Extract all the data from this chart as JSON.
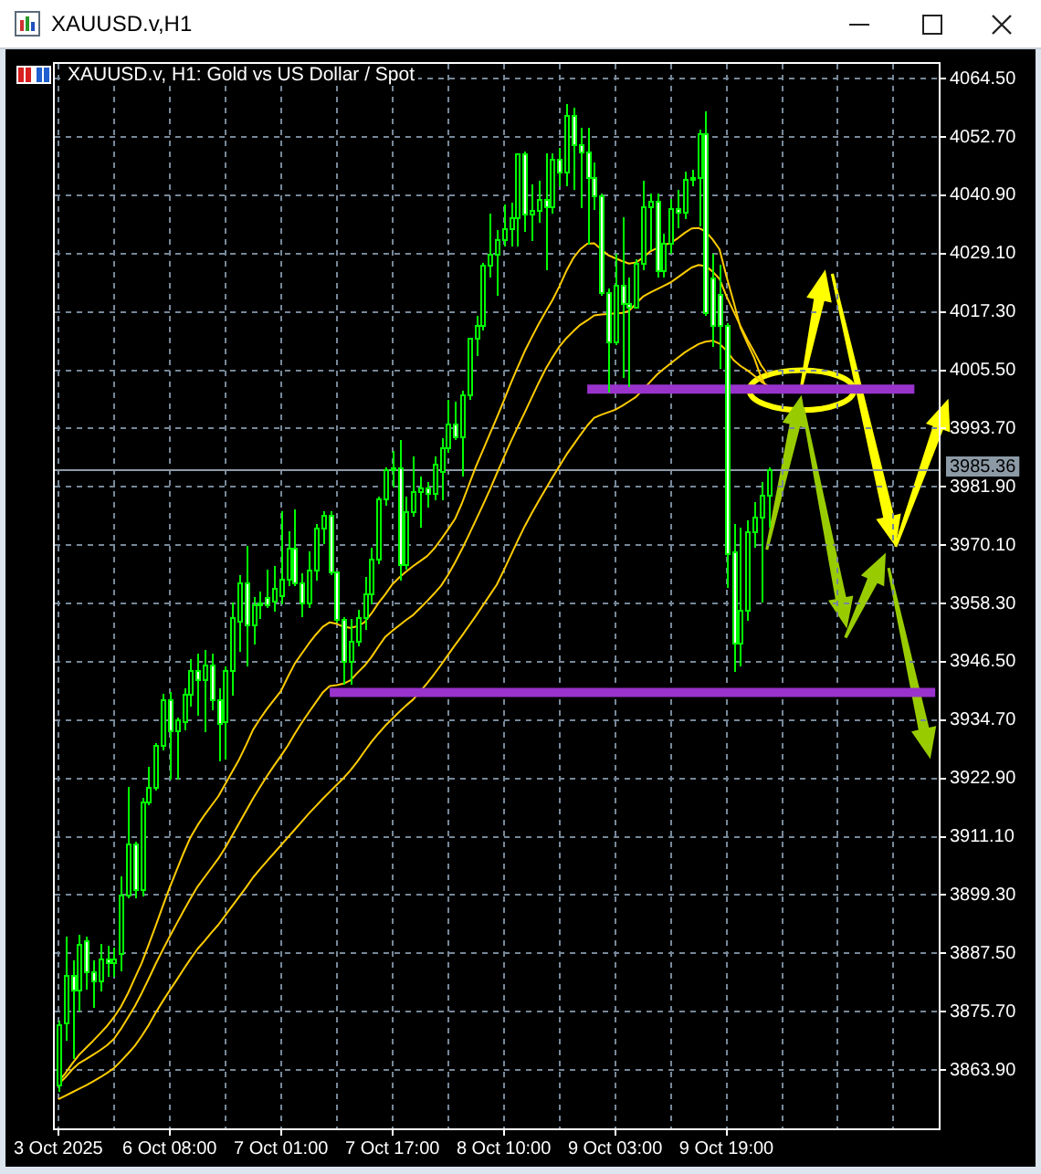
{
  "chart_data": {
    "type": "candlestick",
    "title": "XAUUSD.v,H1",
    "subtitle": "XAUUSD.v, H1: Gold vs US Dollar / Spot",
    "color": "#00ff00",
    "categories": [
      "3 Oct 2025",
      null,
      null,
      null,
      null,
      null,
      null,
      null,
      null,
      null,
      null,
      null,
      null,
      null,
      null,
      null,
      "6 Oct 08:00",
      null,
      null,
      null,
      null,
      null,
      null,
      null,
      null,
      null,
      null,
      null,
      null,
      null,
      null,
      null,
      "7 Oct 01:00",
      null,
      null,
      null,
      null,
      null,
      null,
      null,
      null,
      null,
      null,
      null,
      null,
      null,
      null,
      null,
      "7 Oct 17:00",
      null,
      null,
      null,
      null,
      null,
      null,
      null,
      null,
      null,
      null,
      null,
      null,
      null,
      null,
      null,
      "8 Oct 10:00",
      null,
      null,
      null,
      null,
      null,
      null,
      null,
      null,
      null,
      null,
      null,
      null,
      null,
      null,
      null,
      "9 Oct 03:00",
      null,
      null,
      null,
      null,
      null,
      null,
      null,
      null,
      null,
      null,
      null,
      null,
      null,
      null,
      null,
      "9 Oct 19:00",
      null,
      null,
      null,
      null,
      null,
      null,
      null,
      null,
      null,
      null,
      null,
      null,
      null,
      null,
      null,
      null,
      null,
      null,
      null,
      null,
      null,
      null,
      null,
      null,
      null,
      null,
      null,
      null,
      null,
      null
    ],
    "ohlc": [
      [
        3861.0,
        3874.0,
        3860.0,
        3873.0
      ],
      [
        3873.7,
        3891.0,
        3870.1,
        3883.3
      ],
      [
        3883.0,
        3886.0,
        3866.4,
        3880.0
      ],
      [
        3880.0,
        3891.2,
        3876.2,
        3889.5
      ],
      [
        3890.0,
        3891.0,
        3880.5,
        3884.0
      ],
      [
        3884.0,
        3886.0,
        3876.8,
        3882.0
      ],
      [
        3882.0,
        3889.5,
        3880.1,
        3886.3
      ],
      [
        3886.3,
        3889.1,
        3883.3,
        3885.8
      ],
      [
        3885.8,
        3888.5,
        3883.0,
        3886.5
      ],
      [
        3887.5,
        3903.0,
        3884.2,
        3899.5
      ],
      [
        3899.5,
        3921.1,
        3898.9,
        3909.9
      ],
      [
        3909.9,
        3910.0,
        3898.9,
        3900.4
      ],
      [
        3900.4,
        3919.0,
        3899.5,
        3918.2
      ],
      [
        3918.2,
        3925.1,
        3918.0,
        3921.1
      ],
      [
        3921.1,
        3929.9,
        3921.0,
        3929.7
      ],
      [
        3929.7,
        3940.0,
        3929.0,
        3938.9
      ],
      [
        3938.9,
        3940.5,
        3922.9,
        3932.7
      ],
      [
        3932.7,
        3935.2,
        3922.9,
        3934.7
      ],
      [
        3934.5,
        3941.0,
        3933.0,
        3940.1
      ],
      [
        3940.0,
        3947.0,
        3938.0,
        3945.0
      ],
      [
        3945.0,
        3948.0,
        3936.0,
        3943.0
      ],
      [
        3943.0,
        3949.0,
        3932.7,
        3946.0
      ],
      [
        3946.0,
        3948.0,
        3937.0,
        3939.0
      ],
      [
        3939.0,
        3941.0,
        3926.8,
        3934.2
      ],
      [
        3934.5,
        3945.5,
        3927.0,
        3944.9
      ],
      [
        3944.9,
        3958.4,
        3940.0,
        3955.4
      ],
      [
        3954.7,
        3964.0,
        3949.0,
        3962.5
      ],
      [
        3962.5,
        3970.1,
        3946.1,
        3954.1
      ],
      [
        3954.1,
        3959.7,
        3950.4,
        3958.1
      ],
      [
        3958.1,
        3960.9,
        3955.7,
        3958.5
      ],
      [
        3959.5,
        3965.2,
        3957.8,
        3958.2
      ],
      [
        3959.0,
        3965.8,
        3957.2,
        3961.5
      ],
      [
        3960.0,
        3976.9,
        3958.4,
        3963.3
      ],
      [
        3963.3,
        3972.9,
        3962.1,
        3969.5
      ],
      [
        3969.5,
        3977.5,
        3962.1,
        3962.7
      ],
      [
        3962.7,
        3964.6,
        3956.0,
        3958.4
      ],
      [
        3958.4,
        3968.9,
        3957.8,
        3965.2
      ],
      [
        3965.2,
        3974.4,
        3963.3,
        3973.5
      ],
      [
        3973.5,
        3976.9,
        3970.7,
        3976.2
      ],
      [
        3976.1,
        3976.9,
        3964.6,
        3964.8
      ],
      [
        3964.8,
        3964.8,
        3954.7,
        3955.0
      ],
      [
        3955.0,
        3955.4,
        3942.4,
        3946.5
      ],
      [
        3946.5,
        3955.0,
        3942.4,
        3950.9
      ],
      [
        3950.9,
        3957.2,
        3950.0,
        3955.4
      ],
      [
        3955.4,
        3963.6,
        3953.5,
        3960.3
      ],
      [
        3960.3,
        3969.5,
        3958.4,
        3967.3
      ],
      [
        3967.3,
        3979.9,
        3966.8,
        3979.6
      ],
      [
        3979.6,
        3986.0,
        3978.5,
        3985.5
      ],
      [
        3985.5,
        3989.0,
        3982.0,
        3985.7
      ],
      [
        3985.7,
        3991.4,
        3963.4,
        3966.1
      ],
      [
        3966.1,
        3980.0,
        3965.5,
        3976.9
      ],
      [
        3976.9,
        3987.9,
        3976.3,
        3981.2
      ],
      [
        3981.2,
        3984.0,
        3974.2,
        3981.9
      ],
      [
        3981.9,
        3983.0,
        3978.0,
        3980.5
      ],
      [
        3980.5,
        3987.9,
        3979.6,
        3986.5
      ],
      [
        3985.0,
        3991.6,
        3979.6,
        3989.8
      ],
      [
        3989.8,
        3999.6,
        3989.2,
        3994.7
      ],
      [
        3994.7,
        3999.0,
        3991.6,
        3992.2
      ],
      [
        3992.2,
        4001.4,
        3984.5,
        4000.8
      ],
      [
        4000.8,
        4012.2,
        4000.0,
        4011.9
      ],
      [
        4011.9,
        4016.4,
        4008.8,
        4014.7
      ],
      [
        4014.7,
        4027.2,
        4014.0,
        4026.9
      ],
      [
        4026.9,
        4037.3,
        4024.8,
        4029.1
      ],
      [
        4029.1,
        4034.0,
        4021.1,
        4031.9
      ],
      [
        4031.9,
        4039.2,
        4031.0,
        4034.4
      ],
      [
        4034.4,
        4039.5,
        4031.0,
        4036.5
      ],
      [
        4036.5,
        4049.5,
        4031.0,
        4049.4
      ],
      [
        4049.4,
        4049.6,
        4034.0,
        4037.1
      ],
      [
        4037.1,
        4043.2,
        4032.2,
        4038.0
      ],
      [
        4038.0,
        4043.9,
        4035.9,
        4040.2
      ],
      [
        4040.2,
        4049.4,
        4026.3,
        4038.5
      ],
      [
        4038.5,
        4049.4,
        4037.7,
        4048.4
      ],
      [
        4048.4,
        4050.4,
        4043.2,
        4045.7
      ],
      [
        4045.7,
        4059.5,
        4043.2,
        4057.0
      ],
      [
        4057.0,
        4058.5,
        4042.5,
        4051.1
      ],
      [
        4051.1,
        4054.5,
        4038.6,
        4049.6
      ],
      [
        4049.6,
        4054.5,
        4031.4,
        4044.7
      ],
      [
        4044.7,
        4047.4,
        4038.2,
        4041.0
      ],
      [
        4041.0,
        4041.3,
        4021.0,
        4021.4
      ],
      [
        4021.4,
        4022.2,
        4001.3,
        4011.5
      ],
      [
        4011.5,
        4029.0,
        4011.0,
        4022.8
      ],
      [
        4022.8,
        4036.4,
        4004.4,
        4019.1
      ],
      [
        4019.1,
        4024.1,
        4002.6,
        4018.5
      ],
      [
        4018.5,
        4028.0,
        4018.2,
        4027.1
      ],
      [
        4027.1,
        4043.7,
        4026.3,
        4038.8
      ],
      [
        4038.8,
        4041.3,
        4030.2,
        4039.7
      ],
      [
        4039.7,
        4041.3,
        4024.7,
        4025.7
      ],
      [
        4025.7,
        4033.3,
        4024.7,
        4031.4
      ],
      [
        4031.4,
        4040.0,
        4029.6,
        4038.2
      ],
      [
        4038.2,
        4041.9,
        4034.5,
        4037.4
      ],
      [
        4037.4,
        4045.6,
        4036.4,
        4044.3
      ],
      [
        4044.3,
        4046.0,
        4043.0,
        4044.7
      ],
      [
        4044.7,
        4054.2,
        4035.0,
        4053.6
      ],
      [
        4053.6,
        4057.9,
        4017.0,
        4017.3
      ],
      [
        4024.1,
        4029.0,
        4010.5,
        4014.5
      ],
      [
        4021.0,
        4027.0,
        4006.2,
        4014.5
      ],
      [
        4014.6,
        4015.0,
        3962.0,
        3968.5
      ],
      [
        3968.8,
        3974.3,
        3944.8,
        3950.3
      ],
      [
        3950.3,
        3973.7,
        3946.0,
        3957.1
      ],
      [
        3957.0,
        3975.0,
        3955.0,
        3973.0
      ],
      [
        3973.0,
        3979.0,
        3970.0,
        3976.0
      ],
      [
        3976.0,
        3983.0,
        3959.0,
        3980.4
      ],
      [
        3980.4,
        3986.0,
        3974.0,
        3985.4
      ],
      null,
      null,
      null,
      null,
      null,
      null,
      null,
      null,
      null,
      null,
      null,
      null,
      null,
      null,
      null,
      null,
      null,
      null,
      null,
      null,
      null,
      null,
      null,
      null
    ],
    "series": [
      {
        "type": "line",
        "color": "#ffcc00",
        "values": [
          3861.5,
          3863.2,
          3865.2,
          3867.0,
          3868.4,
          3869.8,
          3871.3,
          3872.8,
          3874.6,
          3876.7,
          3879.4,
          3882.5,
          3885.6,
          3889.3,
          3893.1,
          3897.0,
          3900.8,
          3904.3,
          3907.8,
          3911.0,
          3913.4,
          3915.5,
          3917.4,
          3919.3,
          3921.8,
          3924.3,
          3926.8,
          3929.7,
          3932.8,
          3935.0,
          3937.0,
          3938.8,
          3940.6,
          3943.5,
          3946.2,
          3948.2,
          3950.2,
          3952.0,
          3953.6,
          3954.5,
          3954.2,
          3953.6,
          3953.4,
          3953.7,
          3954.5,
          3956.3,
          3958.4,
          3960.2,
          3962.2,
          3963.6,
          3964.8,
          3965.9,
          3966.9,
          3967.9,
          3969.4,
          3971.3,
          3973.3,
          3975.4,
          3978.6,
          3982.3,
          3986.0,
          3989.3,
          3992.6,
          3995.9,
          3999.3,
          4002.8,
          4006.1,
          4009.3,
          4012.1,
          4014.8,
          4017.3,
          4019.7,
          4022.5,
          4025.6,
          4028.2,
          4030.0,
          4031.1,
          4031.2,
          4030.0,
          4028.8,
          4028.2,
          4027.6,
          4027.1,
          4027.3,
          4028.3,
          4029.5,
          4030.2,
          4030.8,
          4031.3,
          4032.2,
          4033.3,
          4034.2,
          4034.3,
          4033.6,
          4032.0,
          4030.0,
          4024.5,
          4019.5,
          4014.2,
          4011.0,
          4008.0,
          4004.0,
          4001.5,
          null,
          null,
          null,
          null,
          null,
          null,
          null,
          null,
          null,
          null,
          null,
          null,
          null,
          null,
          null,
          null,
          null,
          null,
          null,
          null,
          null,
          null,
          null,
          null
        ]
      },
      {
        "type": "line",
        "color": "#ffcc00",
        "values": [
          3861.0,
          3862.4,
          3864.0,
          3865.3,
          3866.1,
          3867.0,
          3867.9,
          3868.9,
          3870.2,
          3872.2,
          3874.5,
          3876.8,
          3879.5,
          3882.4,
          3885.4,
          3888.2,
          3890.9,
          3893.5,
          3896.1,
          3898.6,
          3901.0,
          3902.9,
          3904.8,
          3906.7,
          3908.9,
          3911.4,
          3913.9,
          3916.4,
          3918.9,
          3921.2,
          3923.4,
          3925.5,
          3927.5,
          3929.6,
          3932.0,
          3934.2,
          3936.3,
          3938.3,
          3940.3,
          3941.6,
          3941.8,
          3942.1,
          3942.8,
          3944.3,
          3945.7,
          3947.5,
          3949.6,
          3951.6,
          3952.8,
          3953.9,
          3955.0,
          3956.0,
          3957.4,
          3958.8,
          3960.3,
          3961.9,
          3964.1,
          3966.6,
          3969.3,
          3972.2,
          3975.2,
          3978.2,
          3981.3,
          3984.6,
          3987.8,
          3991.0,
          3994.0,
          3996.9,
          3999.9,
          4002.9,
          4005.7,
          4008.1,
          4010.3,
          4012.0,
          4013.4,
          4014.7,
          4015.6,
          4016.6,
          4016.8,
          4016.9,
          4017.0,
          4017.1,
          4017.5,
          4019.0,
          4020.4,
          4021.2,
          4021.9,
          4022.6,
          4023.3,
          4024.3,
          4025.3,
          4026.3,
          4026.8,
          4026.6,
          4025.5,
          4024.0,
          4020.5,
          4017.5,
          4014.5,
          4011.7,
          4009.2,
          4006.5,
          4004.5,
          null,
          null,
          null,
          null,
          null,
          null,
          null,
          null,
          null,
          null,
          null,
          null,
          null,
          null,
          null,
          null,
          null,
          null,
          null,
          null,
          null,
          null,
          null,
          null
        ]
      },
      {
        "type": "line",
        "color": "#ffcc00",
        "values": [
          3858.0,
          3858.7,
          3859.4,
          3860.1,
          3860.8,
          3861.6,
          3862.4,
          3863.3,
          3864.3,
          3865.7,
          3867.2,
          3868.8,
          3870.8,
          3873.0,
          3875.5,
          3877.8,
          3880.0,
          3882.1,
          3884.3,
          3886.4,
          3888.4,
          3890.0,
          3891.7,
          3893.3,
          3895.2,
          3897.1,
          3899.0,
          3900.9,
          3902.9,
          3904.6,
          3906.2,
          3907.8,
          3909.4,
          3911.0,
          3912.6,
          3914.2,
          3915.8,
          3917.3,
          3918.8,
          3920.2,
          3921.6,
          3923.0,
          3924.6,
          3926.4,
          3928.4,
          3930.3,
          3932.0,
          3933.6,
          3935.0,
          3936.4,
          3937.7,
          3938.9,
          3940.5,
          3942.2,
          3944.0,
          3945.9,
          3947.9,
          3949.9,
          3951.8,
          3953.8,
          3955.8,
          3957.9,
          3960.0,
          3962.1,
          3965.0,
          3968.0,
          3971.0,
          3973.9,
          3976.5,
          3979.0,
          3981.4,
          3983.8,
          3986.1,
          3988.4,
          3990.4,
          3992.4,
          3994.3,
          3995.9,
          3996.5,
          3997.0,
          3997.5,
          3998.3,
          3999.2,
          4000.1,
          4001.6,
          4003.1,
          4004.6,
          4005.8,
          4006.9,
          4008.0,
          4009.1,
          4010.0,
          4010.8,
          4011.3,
          4011.5,
          4010.9,
          4009.5,
          4007.6,
          4006.4,
          4005.5,
          4004.4,
          4003.2,
          4002.3,
          null,
          null,
          null,
          null,
          null,
          null,
          null,
          null,
          null,
          null,
          null,
          null,
          null,
          null,
          null,
          null,
          null,
          null,
          null,
          null,
          null,
          null,
          null,
          null
        ]
      },
      {
        "type": "step",
        "color": "#9933cc",
        "values": [
          null,
          null,
          null,
          null,
          null,
          null,
          null,
          null,
          null,
          null,
          null,
          null,
          null,
          null,
          null,
          null,
          null,
          null,
          null,
          null,
          null,
          null,
          null,
          null,
          null,
          null,
          null,
          null,
          null,
          null,
          null,
          null,
          null,
          null,
          null,
          null,
          null,
          null,
          null,
          null,
          null,
          null,
          null,
          null,
          null,
          null,
          null,
          null,
          null,
          null,
          null,
          null,
          null,
          null,
          null,
          null,
          null,
          null,
          null,
          null,
          null,
          null,
          null,
          null,
          null,
          null,
          null,
          null,
          null,
          null,
          null,
          null,
          null,
          null,
          null,
          null,
          4001.7,
          4001.7,
          4001.7,
          4001.7,
          4001.7,
          4001.7,
          4001.7,
          4001.7,
          4001.7,
          4001.7,
          4001.7,
          4001.7,
          4001.7,
          4001.7,
          4001.7,
          4001.7,
          4001.7,
          4001.7,
          4001.7,
          4001.7,
          4001.7,
          4001.7,
          4001.7,
          4001.7,
          4001.7,
          4001.7,
          4001.7,
          4001.7,
          4001.7,
          4001.7,
          4001.7,
          4001.7,
          4001.7,
          4001.7,
          4001.7,
          4001.7,
          4001.7,
          4001.7,
          4001.7,
          4001.7,
          4001.7,
          4001.7,
          4001.7,
          4001.7,
          4001.7,
          4001.7,
          4001.7,
          4001.7,
          null,
          null,
          null
        ]
      },
      {
        "type": "step",
        "color": "#9933cc",
        "values": [
          null,
          null,
          null,
          null,
          null,
          null,
          null,
          null,
          null,
          null,
          null,
          null,
          null,
          null,
          null,
          null,
          null,
          null,
          null,
          null,
          null,
          null,
          null,
          null,
          null,
          null,
          null,
          null,
          null,
          null,
          null,
          null,
          null,
          null,
          null,
          null,
          null,
          null,
          null,
          3940.3,
          3940.3,
          3940.3,
          3940.3,
          3940.3,
          3940.3,
          3940.3,
          3940.3,
          3940.3,
          3940.3,
          3940.3,
          3940.3,
          3940.3,
          3940.3,
          3940.3,
          3940.3,
          3940.3,
          3940.3,
          3940.3,
          3940.3,
          3940.3,
          3940.3,
          3940.3,
          3940.3,
          3940.3,
          3940.3,
          3940.3,
          3940.3,
          3940.3,
          3940.3,
          3940.3,
          3940.3,
          3940.3,
          3940.3,
          3940.3,
          3940.3,
          3940.3,
          3940.3,
          3940.3,
          3940.3,
          3940.3,
          3940.3,
          3940.3,
          3940.3,
          3940.3,
          3940.3,
          3940.3,
          3940.3,
          3940.3,
          3940.3,
          3940.3,
          3940.3,
          3940.3,
          3940.3,
          3940.3,
          3940.3,
          3940.3,
          3940.3,
          3940.3,
          3940.3,
          3940.3,
          3940.3,
          3940.3,
          3940.3,
          3940.3,
          3940.3,
          3940.3,
          3940.3,
          3940.3,
          3940.3,
          3940.3,
          3940.3,
          3940.3,
          3940.3,
          3940.3,
          3940.3,
          3940.3,
          3940.3,
          3940.3,
          3940.3,
          3940.3,
          3940.3,
          3940.3,
          3940.3,
          3940.3,
          3940.3,
          3940.3,
          3940.3
        ]
      }
    ],
    "ylim": [
      3852.1,
      4067.5
    ],
    "yticks": [
      {
        "value": 4064.5,
        "label": "4064.50"
      },
      {
        "value": 4052.7,
        "label": "4052.70"
      },
      {
        "value": 4040.9,
        "label": "4040.90"
      },
      {
        "value": 4029.1,
        "label": "4029.10"
      },
      {
        "value": 4017.3,
        "label": "4017.30"
      },
      {
        "value": 4005.5,
        "label": "4005.50"
      },
      {
        "value": 3993.7,
        "label": "3993.70"
      },
      {
        "value": 3981.9,
        "label": "3981.90"
      },
      {
        "value": 3970.1,
        "label": "3970.10"
      },
      {
        "value": 3958.3,
        "label": "3958.30"
      },
      {
        "value": 3946.5,
        "label": "3946.50"
      },
      {
        "value": 3934.7,
        "label": "3934.70"
      },
      {
        "value": 3922.9,
        "label": "3922.90"
      },
      {
        "value": 3911.1,
        "label": "3911.10"
      },
      {
        "value": 3899.3,
        "label": "3899.30"
      },
      {
        "value": 3887.5,
        "label": "3887.50"
      },
      {
        "value": 3875.7,
        "label": "3875.70"
      },
      {
        "value": 3863.9,
        "label": "3863.90"
      }
    ],
    "ref_lines": [
      {
        "axis": "y",
        "value": 3985.36,
        "label": "3985.36",
        "color": "#8c9aa6"
      }
    ],
    "grid": true
  }
}
